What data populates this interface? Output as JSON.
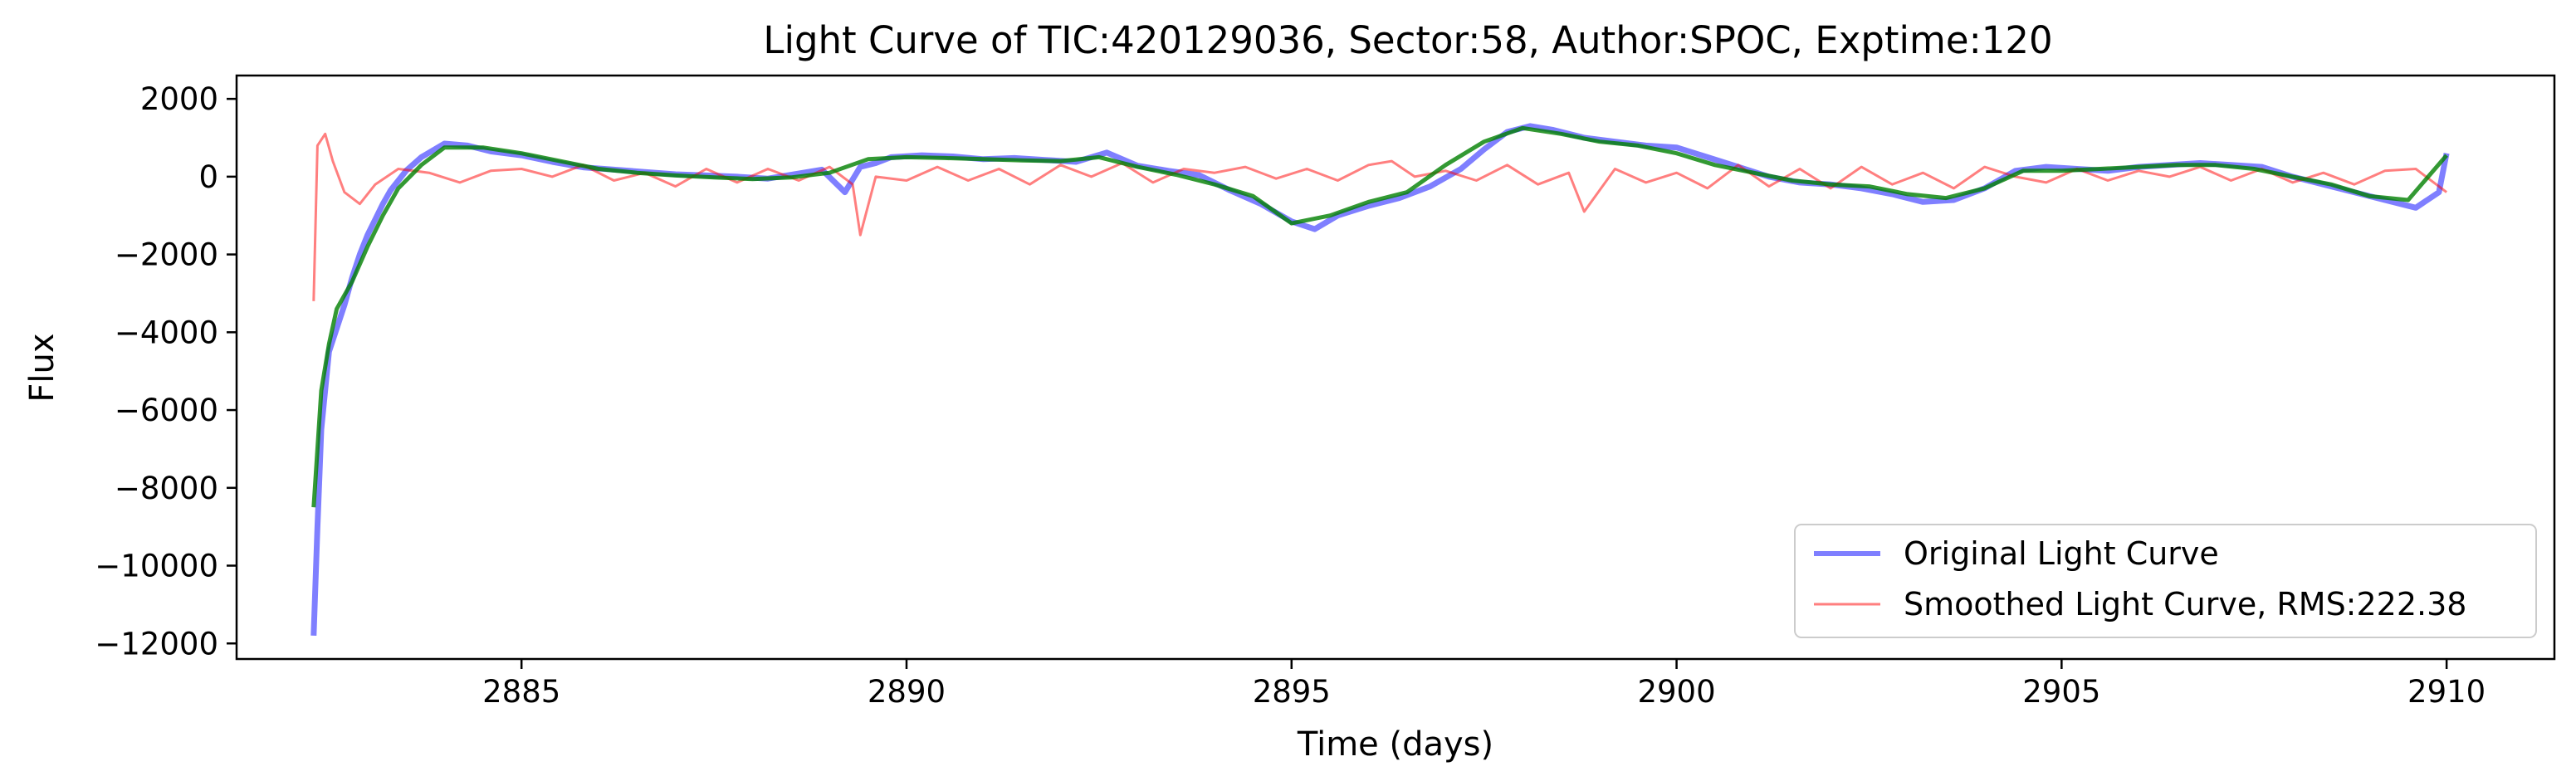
{
  "chart_data": {
    "type": "line",
    "title": "Light Curve of TIC:420129036, Sector:58, Author:SPOC, Exptime:120",
    "xlabel": "Time (days)",
    "ylabel": "Flux",
    "xlim": [
      2881.3,
      2911.4
    ],
    "ylim": [
      -12400,
      2600
    ],
    "xticks": [
      2885,
      2890,
      2895,
      2900,
      2905,
      2910
    ],
    "xtick_labels": [
      "2885",
      "2890",
      "2895",
      "2900",
      "2905",
      "2910"
    ],
    "yticks": [
      2000,
      0,
      -2000,
      -4000,
      -6000,
      -8000,
      -10000,
      -12000
    ],
    "ytick_labels": [
      "2000",
      "0",
      "−2000",
      "−4000",
      "−6000",
      "−8000",
      "−10000",
      "−12000"
    ],
    "grid": false,
    "legend_position": "lower right",
    "series": [
      {
        "name": "Original Light Curve",
        "color": "#0000ff",
        "alpha": 0.5,
        "x": [
          2882.3,
          2882.35,
          2882.4,
          2882.5,
          2882.6,
          2882.7,
          2882.8,
          2882.9,
          2883.0,
          2883.1,
          2883.2,
          2883.3,
          2883.5,
          2883.7,
          2884.0,
          2884.3,
          2884.6,
          2885.0,
          2885.4,
          2885.8,
          2886.2,
          2886.6,
          2887.0,
          2887.4,
          2887.8,
          2888.2,
          2888.6,
          2888.9,
          2889.2,
          2889.4,
          2889.6,
          2889.8,
          2890.2,
          2890.6,
          2891.0,
          2891.4,
          2891.8,
          2892.2,
          2892.6,
          2893.0,
          2893.4,
          2893.8,
          2894.2,
          2894.6,
          2895.0,
          2895.3,
          2895.6,
          2896.0,
          2896.4,
          2896.8,
          2897.2,
          2897.5,
          2897.8,
          2898.1,
          2898.4,
          2898.8,
          2899.2,
          2899.6,
          2900.0,
          2900.4,
          2900.8,
          2901.2,
          2901.6,
          2902.0,
          2902.4,
          2902.8,
          2903.2,
          2903.6,
          2904.0,
          2904.4,
          2904.8,
          2905.2,
          2905.6,
          2906.0,
          2906.4,
          2906.8,
          2907.2,
          2907.6,
          2908.0,
          2908.4,
          2908.8,
          2909.2,
          2909.6,
          2909.9,
          2910.0
        ],
        "y": [
          -11800,
          -9000,
          -6500,
          -4500,
          -3900,
          -3300,
          -2600,
          -2000,
          -1500,
          -1100,
          -700,
          -350,
          150,
          500,
          850,
          800,
          650,
          550,
          380,
          240,
          180,
          120,
          60,
          30,
          0,
          -50,
          80,
          180,
          -400,
          250,
          350,
          500,
          550,
          520,
          450,
          480,
          430,
          380,
          620,
          280,
          150,
          40,
          -350,
          -700,
          -1150,
          -1350,
          -1000,
          -750,
          -550,
          -250,
          200,
          700,
          1150,
          1300,
          1200,
          1000,
          900,
          800,
          750,
          500,
          250,
          0,
          -150,
          -200,
          -300,
          -450,
          -650,
          -600,
          -300,
          150,
          250,
          200,
          150,
          250,
          300,
          350,
          300,
          250,
          0,
          -200,
          -400,
          -600,
          -800,
          -400,
          600
        ]
      },
      {
        "name": "Smoothed Light Curve, RMS:222.38",
        "color": "#ff0000",
        "alpha": 0.5,
        "x": [
          2882.3,
          2882.35,
          2882.45,
          2882.55,
          2882.7,
          2882.9,
          2883.1,
          2883.4,
          2883.8,
          2884.2,
          2884.6,
          2885.0,
          2885.4,
          2885.8,
          2886.2,
          2886.6,
          2887.0,
          2887.4,
          2887.8,
          2888.2,
          2888.6,
          2889.0,
          2889.3,
          2889.4,
          2889.6,
          2890.0,
          2890.4,
          2890.8,
          2891.2,
          2891.6,
          2892.0,
          2892.4,
          2892.8,
          2893.2,
          2893.6,
          2894.0,
          2894.4,
          2894.8,
          2895.2,
          2895.6,
          2896.0,
          2896.3,
          2896.6,
          2897.0,
          2897.4,
          2897.8,
          2898.2,
          2898.6,
          2898.8,
          2899.2,
          2899.6,
          2900.0,
          2900.4,
          2900.8,
          2901.2,
          2901.6,
          2902.0,
          2902.4,
          2902.8,
          2903.2,
          2903.6,
          2904.0,
          2904.4,
          2904.8,
          2905.2,
          2905.6,
          2906.0,
          2906.4,
          2906.8,
          2907.2,
          2907.6,
          2908.0,
          2908.4,
          2908.8,
          2909.2,
          2909.6,
          2910.0
        ],
        "y": [
          -3200,
          800,
          1100,
          400,
          -400,
          -700,
          -200,
          200,
          100,
          -150,
          150,
          200,
          0,
          300,
          -100,
          100,
          -250,
          200,
          -150,
          200,
          -100,
          250,
          -200,
          -1500,
          0,
          -100,
          250,
          -100,
          200,
          -200,
          300,
          0,
          350,
          -150,
          200,
          100,
          250,
          -50,
          200,
          -100,
          300,
          400,
          0,
          150,
          -100,
          300,
          -200,
          100,
          -900,
          200,
          -150,
          100,
          -300,
          300,
          -250,
          200,
          -300,
          250,
          -200,
          100,
          -300,
          250,
          0,
          -150,
          200,
          -100,
          150,
          0,
          250,
          -100,
          200,
          -150,
          100,
          -200,
          150,
          200,
          -400
        ]
      },
      {
        "color": "#008000",
        "alpha": 0.8,
        "x": [
          2882.3,
          2882.4,
          2882.5,
          2882.6,
          2882.8,
          2883.0,
          2883.2,
          2883.4,
          2883.7,
          2884.0,
          2884.5,
          2885.0,
          2885.5,
          2886.0,
          2886.5,
          2887.0,
          2887.5,
          2888.0,
          2888.5,
          2889.0,
          2889.5,
          2890.0,
          2890.5,
          2891.0,
          2891.5,
          2892.0,
          2892.5,
          2893.0,
          2893.5,
          2894.0,
          2894.5,
          2895.0,
          2895.5,
          2896.0,
          2896.5,
          2897.0,
          2897.5,
          2898.0,
          2898.5,
          2899.0,
          2899.5,
          2900.0,
          2900.5,
          2901.0,
          2901.5,
          2902.0,
          2902.5,
          2903.0,
          2903.5,
          2904.0,
          2904.5,
          2905.0,
          2905.5,
          2906.0,
          2906.5,
          2907.0,
          2907.5,
          2908.0,
          2908.5,
          2909.0,
          2909.5,
          2910.0
        ],
        "y": [
          -8500,
          -5500,
          -4300,
          -3400,
          -2700,
          -1800,
          -1000,
          -300,
          300,
          750,
          750,
          600,
          400,
          200,
          100,
          30,
          -20,
          -60,
          -20,
          100,
          450,
          500,
          480,
          450,
          420,
          400,
          500,
          250,
          50,
          -200,
          -500,
          -1200,
          -1000,
          -650,
          -400,
          300,
          900,
          1250,
          1100,
          900,
          800,
          600,
          300,
          100,
          -100,
          -200,
          -250,
          -450,
          -550,
          -300,
          150,
          150,
          200,
          250,
          300,
          300,
          200,
          0,
          -200,
          -500,
          -600,
          550
        ]
      }
    ]
  }
}
